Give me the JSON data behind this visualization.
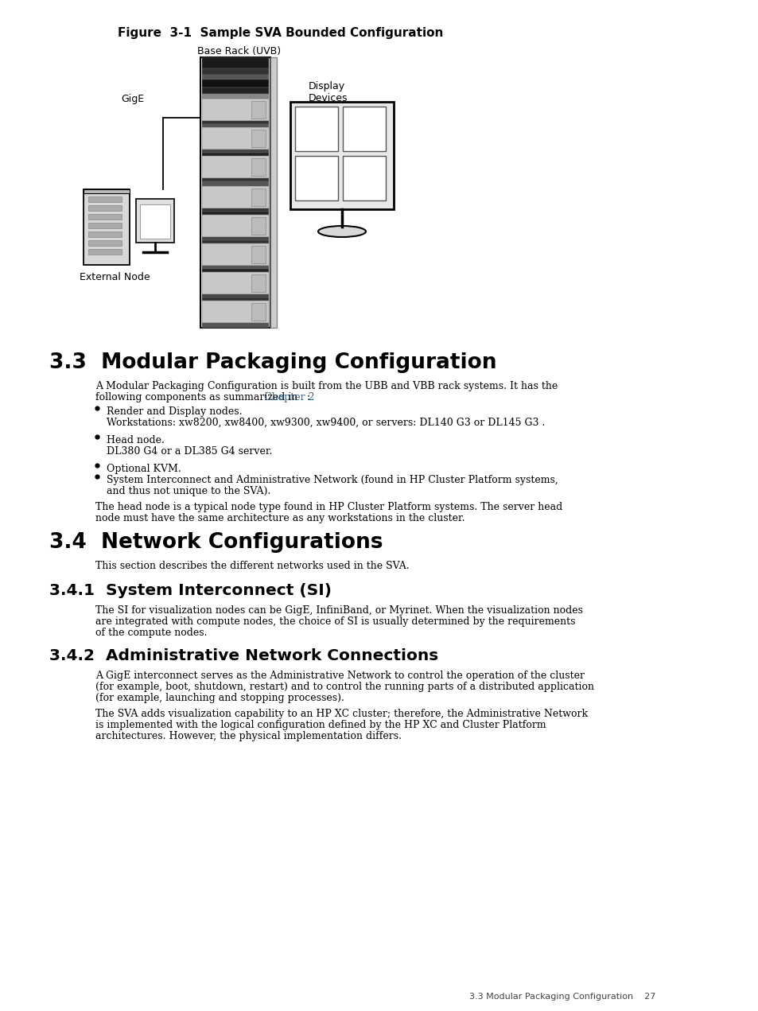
{
  "figure_title": "Figure  3-1  Sample SVA Bounded Configuration",
  "fig_label_base_rack": "Base Rack (UVB)",
  "fig_label_display": "Display\nDevices",
  "fig_label_external": "External Node",
  "fig_label_gige": "GigE",
  "section_33_title": "3.3  Modular Packaging Configuration",
  "section_33_para1_a": "A Modular Packaging Configuration is built from the UBB and VBB rack systems. It has the\nfollowing components as summarized in ",
  "section_33_para1_link": "Chapter 2",
  "section_33_para1_b": ":",
  "section_33_bullet1": "Render and Display nodes.",
  "section_33_bullet1_sub": "Workstations: xw8200, xw8400, xw9300, xw9400, or servers: DL140 G3 or DL145 G3 .",
  "section_33_bullet2": "Head node.",
  "section_33_bullet2_sub": "DL380 G4 or a DL385 G4 server.",
  "section_33_bullet3": "Optional KVM.",
  "section_33_bullet4": "System Interconnect and Administrative Network (found in HP Cluster Platform systems,\nand thus not unique to the SVA).",
  "section_33_para2": "The head node is a typical node type found in HP Cluster Platform systems. The server head\nnode must have the same architecture as any workstations in the cluster.",
  "section_34_title": "3.4  Network Configurations",
  "section_34_para1": "This section describes the different networks used in the SVA.",
  "section_341_title": "3.4.1  System Interconnect (SI)",
  "section_341_para1": "The SI for visualization nodes can be GigE, InfiniBand, or Myrinet. When the visualization nodes\nare integrated with compute nodes, the choice of SI is usually determined by the requirements\nof the compute nodes.",
  "section_342_title": "3.4.2  Administrative Network Connections",
  "section_342_para1": "A GigE interconnect serves as the Administrative Network to control the operation of the cluster\n(for example, boot, shutdown, restart) and to control the running parts of a distributed application\n(for example, launching and stopping processes).",
  "section_342_para2": "The SVA adds visualization capability to an HP XC cluster; therefore, the Administrative Network\nis implemented with the logical configuration defined by the HP XC and Cluster Platform\narchitectures. However, the physical implementation differs.",
  "footer_text": "3.3 Modular Packaging Configuration    27",
  "bg_color": "#ffffff",
  "text_color": "#000000",
  "link_color": "#336699",
  "body_font_size": 9.0,
  "heading1_font_size": 19,
  "heading2_font_size": 14.5,
  "heading3_font_size": 13,
  "fig_title_font_size": 11
}
